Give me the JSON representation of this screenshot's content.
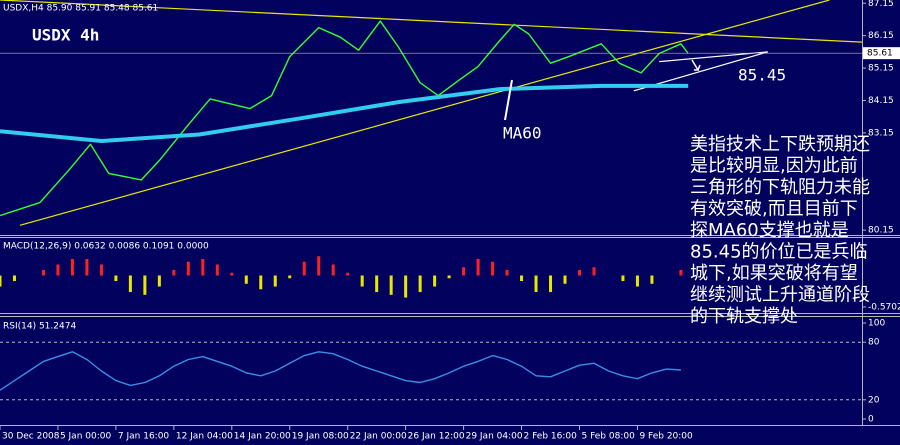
{
  "chart_data": [
    {
      "type": "line",
      "title": "USDX,H4 85.90 85.91 85.48 85.61",
      "subtitle": "USDX 4h",
      "xlim": [
        0,
        238
      ],
      "ylim": [
        80,
        87.25
      ],
      "yticks": [
        87.15,
        86.15,
        85.15,
        84.15,
        83.15,
        80.15
      ],
      "current_price": 85.61,
      "series": [
        {
          "color": "#33ff33",
          "x": [
            0,
            11,
            19,
            25,
            30,
            39,
            44,
            52,
            58,
            69,
            75,
            80,
            88,
            94,
            99,
            105,
            110,
            116,
            121,
            127,
            132,
            138,
            142,
            146,
            152,
            157,
            166,
            171,
            177,
            182,
            188,
            190
          ],
          "values": [
            80.6,
            81.0,
            82.0,
            82.8,
            81.9,
            81.7,
            82.3,
            83.4,
            84.2,
            83.9,
            84.3,
            85.5,
            86.4,
            86.1,
            85.7,
            86.6,
            85.8,
            84.7,
            84.3,
            84.8,
            85.2,
            86.0,
            86.5,
            86.2,
            85.3,
            85.5,
            85.9,
            85.3,
            85.0,
            85.6,
            85.9,
            85.6
          ]
        },
        {
          "name": "MA60",
          "color": "#33ccee",
          "x": [
            0,
            28,
            55,
            83,
            110,
            138,
            166,
            190
          ],
          "values": [
            83.2,
            82.9,
            83.1,
            83.6,
            84.1,
            84.5,
            84.6,
            84.6
          ]
        }
      ],
      "trendlines": [
        {
          "color": "#e8e800",
          "x": [
            5.5,
            229
          ],
          "values": [
            80.3,
            87.25
          ]
        },
        {
          "color": "#e8e800",
          "x": [
            0,
            238
          ],
          "values": [
            87.25,
            85.95
          ]
        },
        {
          "color": "#ffffff",
          "x": [
            175,
            212
          ],
          "values": [
            84.45,
            85.65
          ]
        },
        {
          "color": "#ffffff",
          "x": [
            182,
            212
          ],
          "values": [
            85.35,
            85.65
          ]
        }
      ],
      "annotation": "85.45",
      "commentary": [
        "美指技术上下跌预期还",
        "是比较明显,因为此前",
        "三角形的下轨阻力未能",
        "有效突破,而且目前下",
        "探MA60支撑也就是",
        "85.45的价位已是兵临",
        "城下,如果突破将有望",
        "继续测试上升通道阶段",
        "的下轨支撑处"
      ]
    },
    {
      "type": "bar",
      "title": "MACD(12,26,9) 0.0632 0.0086 0.1091 0.0000",
      "xlim": [
        0,
        238
      ],
      "ylim": [
        -0.68,
        0.68
      ],
      "yticks": [
        -0.5702
      ],
      "positive_color": "#ff2020",
      "negative_color": "#e8e800",
      "x": [
        0,
        4,
        8,
        12,
        16,
        20,
        24,
        28,
        32,
        36,
        40,
        44,
        48,
        52,
        56,
        60,
        64,
        68,
        72,
        76,
        80,
        84,
        88,
        92,
        96,
        100,
        104,
        108,
        112,
        116,
        120,
        124,
        128,
        132,
        136,
        140,
        144,
        148,
        152,
        156,
        160,
        164,
        168,
        172,
        176,
        180,
        184,
        188
      ],
      "values": [
        -0.2,
        -0.1,
        0.0,
        0.1,
        0.2,
        0.3,
        0.3,
        0.2,
        -0.1,
        -0.3,
        -0.35,
        -0.2,
        0.1,
        0.25,
        0.3,
        0.2,
        0.05,
        -0.15,
        -0.25,
        -0.2,
        -0.05,
        0.25,
        0.35,
        0.2,
        0.05,
        -0.2,
        -0.3,
        -0.35,
        -0.4,
        -0.3,
        -0.2,
        -0.05,
        0.15,
        0.3,
        0.25,
        0.1,
        -0.1,
        -0.3,
        -0.3,
        -0.15,
        0.1,
        0.15,
        0.0,
        -0.1,
        -0.2,
        -0.15,
        0.0,
        0.1
      ]
    },
    {
      "type": "line",
      "title": "RSI(14) 51.2474",
      "xlim": [
        0,
        238
      ],
      "ylim": [
        -6.25,
        105.2
      ],
      "yticks": [
        100,
        80,
        20,
        0
      ],
      "levels": [
        80,
        20
      ],
      "xticks": [
        {
          "value": 0,
          "label": "30 Dec 2008"
        },
        {
          "value": 16,
          "label": "5 Jan 00:00"
        },
        {
          "value": 32,
          "label": "7 Jan 16:00"
        },
        {
          "value": 48,
          "label": "12 Jan 04:00"
        },
        {
          "value": 64,
          "label": "14 Jan 20:00"
        },
        {
          "value": 80,
          "label": "19 Jan 08:00"
        },
        {
          "value": 96,
          "label": "22 Jan 00:00"
        },
        {
          "value": 112,
          "label": "26 Jan 12:00"
        },
        {
          "value": 128,
          "label": "29 Jan 04:00"
        },
        {
          "value": 144,
          "label": "2 Feb 16:00"
        },
        {
          "value": 160,
          "label": "5 Feb 08:00"
        },
        {
          "value": 176,
          "label": "9 Feb 20:00"
        }
      ],
      "series": [
        {
          "color": "#3a8ee8",
          "x": [
            0,
            4,
            8,
            12,
            16,
            20,
            24,
            28,
            32,
            36,
            40,
            44,
            48,
            52,
            56,
            60,
            64,
            68,
            72,
            76,
            80,
            84,
            88,
            92,
            96,
            100,
            104,
            108,
            112,
            116,
            120,
            124,
            128,
            132,
            136,
            140,
            144,
            148,
            152,
            156,
            160,
            164,
            168,
            172,
            176,
            180,
            184,
            188
          ],
          "values": [
            30,
            40,
            50,
            60,
            65,
            70,
            62,
            50,
            40,
            35,
            38,
            45,
            55,
            62,
            65,
            60,
            55,
            48,
            45,
            50,
            58,
            66,
            70,
            68,
            62,
            55,
            50,
            45,
            40,
            38,
            42,
            48,
            55,
            60,
            66,
            62,
            55,
            45,
            44,
            50,
            56,
            58,
            50,
            45,
            42,
            48,
            52,
            51
          ]
        }
      ]
    }
  ]
}
